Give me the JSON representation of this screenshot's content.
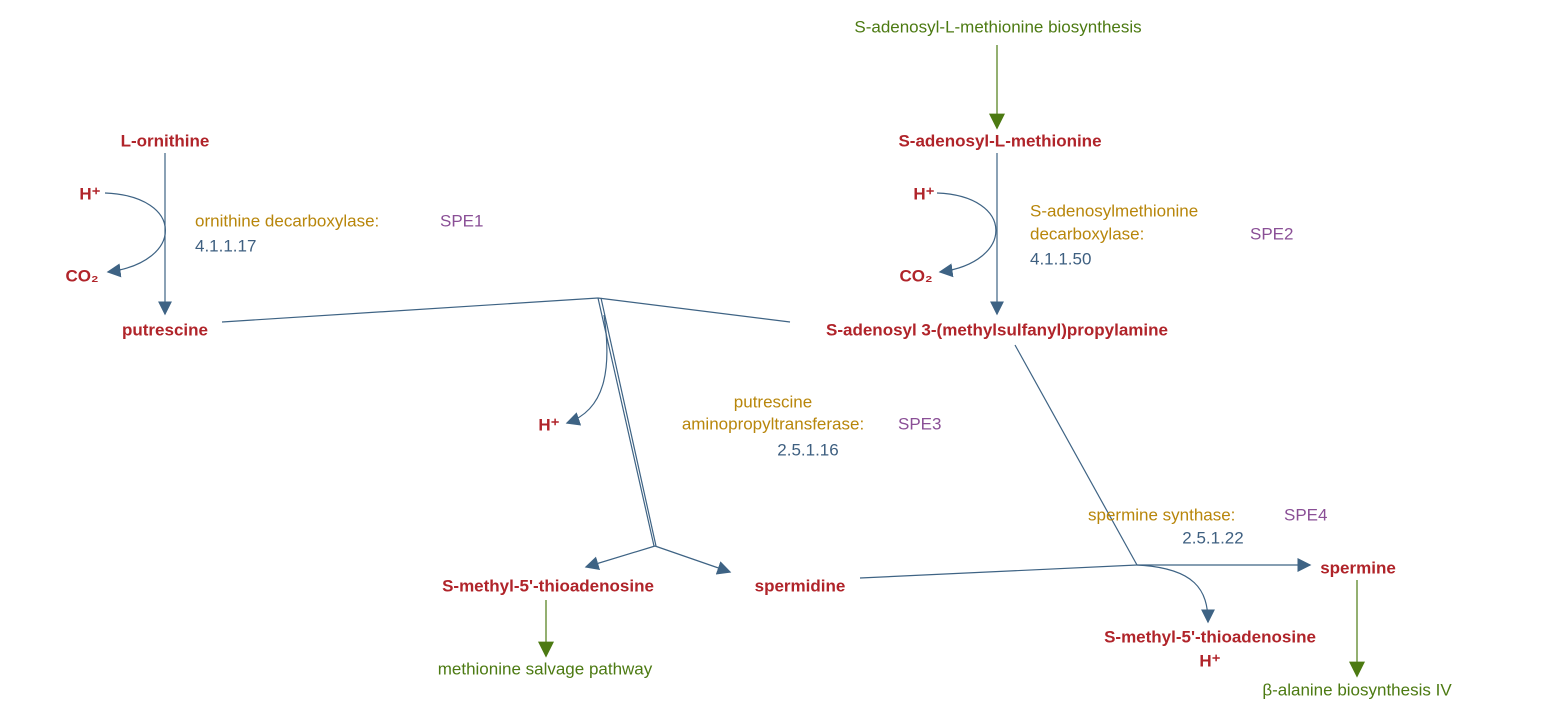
{
  "pathway_links": [
    "S-adenosyl-L-methionine biosynthesis",
    "methionine salvage pathway",
    "β-alanine biosynthesis IV"
  ],
  "compounds": [
    "L-ornithine",
    "H⁺",
    "CO₂",
    "putrescine",
    "S-adenosyl-L-methionine",
    "H⁺",
    "CO₂",
    "S-adenosyl 3-(methylsulfanyl)propylamine",
    "H⁺",
    "S-methyl-5'-thioadenosine",
    "spermidine",
    "spermine",
    "S-methyl-5'-thioadenosine",
    "H⁺"
  ],
  "enzymes": [
    {
      "name_lines": [
        "ornithine decarboxylase:"
      ],
      "gene": "SPE1",
      "ec": "4.1.1.17"
    },
    {
      "name_lines": [
        "S-adenosylmethionine",
        "decarboxylase:"
      ],
      "gene": "SPE2",
      "ec": "4.1.1.50"
    },
    {
      "name_lines": [
        "putrescine",
        "aminopropyltransferase:"
      ],
      "gene": "SPE3",
      "ec": "2.5.1.16"
    },
    {
      "name_lines": [
        "spermine synthase:"
      ],
      "gene": "SPE4",
      "ec": "2.5.1.22"
    }
  ]
}
